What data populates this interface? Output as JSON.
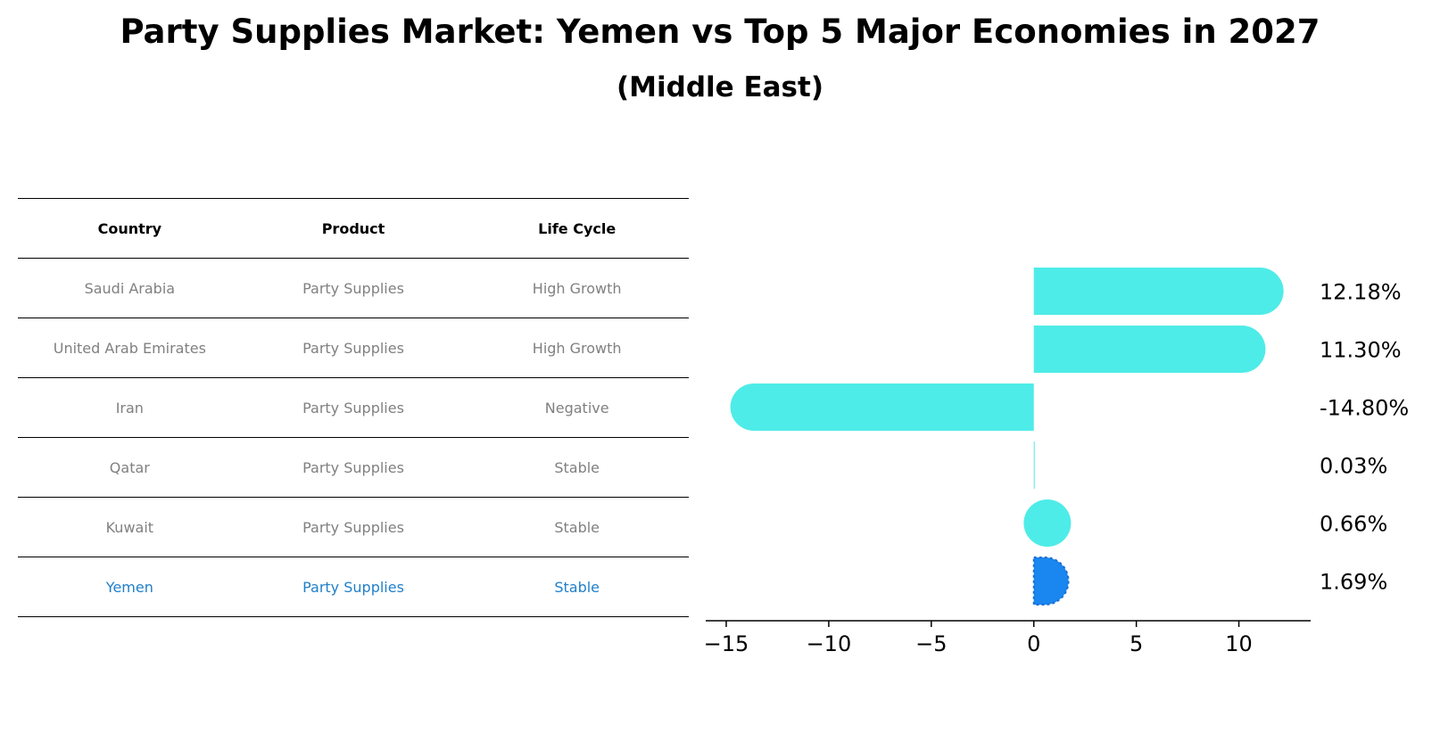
{
  "title": "Party Supplies Market: Yemen vs Top 5 Major Economies in 2027",
  "subtitle": "(Middle East)",
  "table": {
    "headers": [
      "Country",
      "Product",
      "Life Cycle"
    ],
    "rows": [
      [
        "Saudi Arabia",
        "Party Supplies",
        "High Growth"
      ],
      [
        "United Arab Emirates",
        "Party Supplies",
        "High Growth"
      ],
      [
        "Iran",
        "Party Supplies",
        "Negative"
      ],
      [
        "Qatar",
        "Party Supplies",
        "Stable"
      ],
      [
        "Kuwait",
        "Party Supplies",
        "Stable"
      ],
      [
        "Yemen",
        "Party Supplies",
        "Stable"
      ]
    ],
    "highlight_row": 5,
    "highlight_color": "#1f7fc9"
  },
  "chart_data": {
    "type": "bar",
    "orientation": "horizontal",
    "categories": [
      "Saudi Arabia",
      "United Arab Emirates",
      "Iran",
      "Qatar",
      "Kuwait",
      "Yemen"
    ],
    "values": [
      12.18,
      11.3,
      -14.8,
      0.03,
      0.66,
      1.69
    ],
    "value_labels": [
      "12.18%",
      "11.30%",
      "-14.80%",
      "0.03%",
      "0.66%",
      "1.69%"
    ],
    "xlim": [
      -16,
      13.5
    ],
    "xticks": [
      -15,
      -10,
      -5,
      0,
      5,
      10
    ],
    "xtick_labels": [
      "−15",
      "−10",
      "−5",
      "0",
      "5",
      "10"
    ],
    "bar_color": "#4eece8",
    "highlight_color": "#1a86f0",
    "highlight_index": 5,
    "grid": false
  }
}
